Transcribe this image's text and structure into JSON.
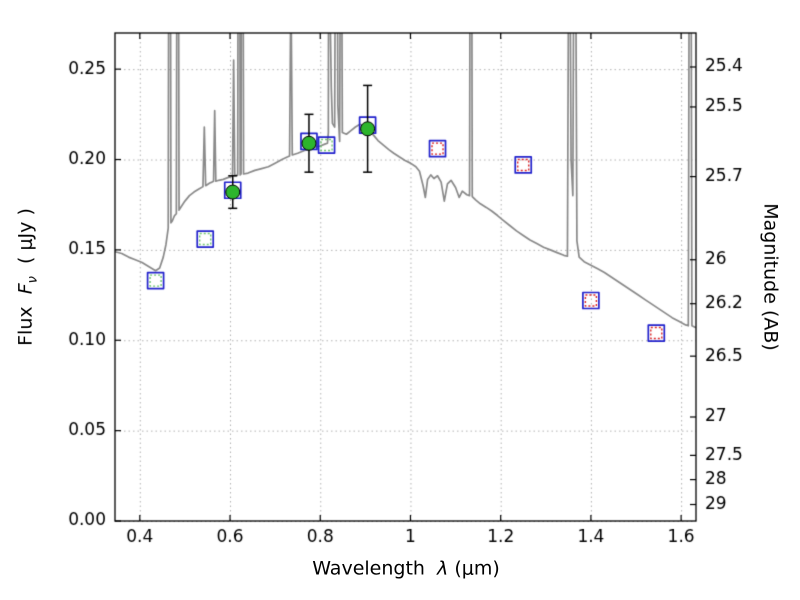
{
  "figure": {
    "background": "#ffffff"
  },
  "chart_data": {
    "type": "line",
    "description": "Spectral energy distribution: model galaxy spectrum (gray line with emission lines) with model photometry (open squares) and observed photometry (green circles with error bars)",
    "xlabel": {
      "word": "Wavelength",
      "symbol": "λ",
      "units": "(μm)"
    },
    "ylabel_left": {
      "word": "Flux",
      "symbol": "F",
      "sub": "ν",
      "units": "( μJy )"
    },
    "ylabel_right": "Magnitude (AB)",
    "xlim": [
      0.345,
      1.633
    ],
    "ylim": [
      0,
      0.27
    ],
    "x_ticks": [
      0.4,
      0.6,
      0.8,
      1,
      1.2,
      1.4,
      1.6
    ],
    "x_tick_labels": [
      "0.4",
      "0.6",
      "0.8",
      "1",
      "1.2",
      "1.4",
      "1.6"
    ],
    "y_ticks_left": [
      0,
      0.05,
      0.1,
      0.15,
      0.2,
      0.25
    ],
    "y_tick_labels_left": [
      "0.00",
      "0.05",
      "0.10",
      "0.15",
      "0.20",
      "0.25"
    ],
    "y_ticks_right_mag": [
      25.4,
      25.5,
      25.7,
      26,
      26.2,
      26.5,
      27,
      27.5,
      28,
      29
    ],
    "y_tick_labels_right": [
      "25.4",
      "25.5",
      "25.7",
      "26",
      "26.2",
      "26.5",
      "27",
      "27.5",
      "28",
      "29"
    ],
    "ab_zeropoint": 23.9,
    "grid": "dotted",
    "colors": {
      "grid": "#b3b3b3",
      "frame": "#000000",
      "spectrum": "#8a8a8a",
      "square_outer": "#2222cc",
      "square_inner_red": "#dd2222",
      "square_inner_green": "#6ec86e",
      "circle": "#2db52d",
      "errorbar": "#000000"
    },
    "series": [
      {
        "name": "model-spectrum",
        "type": "line",
        "points": [
          [
            0.345,
            0.149
          ],
          [
            0.36,
            0.148
          ],
          [
            0.375,
            0.146
          ],
          [
            0.39,
            0.1445
          ],
          [
            0.405,
            0.143
          ],
          [
            0.415,
            0.1415
          ],
          [
            0.425,
            0.14
          ],
          [
            0.435,
            0.1385
          ],
          [
            0.444,
            0.14
          ],
          [
            0.452,
            0.146
          ],
          [
            0.458,
            0.153
          ],
          [
            0.463,
            0.162
          ],
          [
            0.466,
            0.6
          ],
          [
            0.469,
            0.165
          ],
          [
            0.472,
            0.166
          ],
          [
            0.477,
            0.169
          ],
          [
            0.481,
            0.17
          ],
          [
            0.484,
            0.55
          ],
          [
            0.487,
            0.172
          ],
          [
            0.492,
            0.174
          ],
          [
            0.5,
            0.177
          ],
          [
            0.51,
            0.18
          ],
          [
            0.52,
            0.182
          ],
          [
            0.53,
            0.1835
          ],
          [
            0.54,
            0.185
          ],
          [
            0.543,
            0.218
          ],
          [
            0.546,
            0.1855
          ],
          [
            0.555,
            0.187
          ],
          [
            0.56,
            0.1875
          ],
          [
            0.5635,
            0.188
          ],
          [
            0.566,
            0.227
          ],
          [
            0.5685,
            0.188
          ],
          [
            0.575,
            0.1885
          ],
          [
            0.585,
            0.189
          ],
          [
            0.595,
            0.19
          ],
          [
            0.603,
            0.1905
          ],
          [
            0.6055,
            0.191
          ],
          [
            0.608,
            0.255
          ],
          [
            0.6105,
            0.191
          ],
          [
            0.617,
            0.1915
          ],
          [
            0.62,
            0.6
          ],
          [
            0.6225,
            0.1915
          ],
          [
            0.6245,
            0.192
          ],
          [
            0.627,
            0.6
          ],
          [
            0.63,
            0.192
          ],
          [
            0.64,
            0.1925
          ],
          [
            0.655,
            0.194
          ],
          [
            0.67,
            0.195
          ],
          [
            0.685,
            0.196
          ],
          [
            0.7,
            0.198
          ],
          [
            0.715,
            0.2
          ],
          [
            0.728,
            0.2015
          ],
          [
            0.732,
            0.202
          ],
          [
            0.735,
            0.3
          ],
          [
            0.738,
            0.2025
          ],
          [
            0.75,
            0.2035
          ],
          [
            0.765,
            0.205
          ],
          [
            0.775,
            0.2055
          ],
          [
            0.79,
            0.207
          ],
          [
            0.8,
            0.2075
          ],
          [
            0.81,
            0.2085
          ],
          [
            0.816,
            0.209
          ],
          [
            0.818,
            0.215
          ],
          [
            0.82,
            0.6
          ],
          [
            0.822,
            0.28
          ],
          [
            0.8245,
            0.24
          ],
          [
            0.827,
            0.22
          ],
          [
            0.832,
            0.218
          ],
          [
            0.836,
            0.5
          ],
          [
            0.839,
            0.23
          ],
          [
            0.843,
            0.21
          ],
          [
            0.846,
            0.42
          ],
          [
            0.849,
            0.215
          ],
          [
            0.858,
            0.214
          ],
          [
            0.868,
            0.216
          ],
          [
            0.878,
            0.218
          ],
          [
            0.888,
            0.2195
          ],
          [
            0.898,
            0.2185
          ],
          [
            0.908,
            0.216
          ],
          [
            0.918,
            0.2135
          ],
          [
            0.928,
            0.2105
          ],
          [
            0.94,
            0.208
          ],
          [
            0.952,
            0.2055
          ],
          [
            0.963,
            0.2035
          ],
          [
            0.975,
            0.2015
          ],
          [
            0.988,
            0.1995
          ],
          [
            1.0,
            0.198
          ],
          [
            1.012,
            0.196
          ],
          [
            1.02,
            0.1935
          ],
          [
            1.028,
            0.1855
          ],
          [
            1.033,
            0.179
          ],
          [
            1.038,
            0.189
          ],
          [
            1.045,
            0.1915
          ],
          [
            1.052,
            0.1895
          ],
          [
            1.06,
            0.191
          ],
          [
            1.068,
            0.1875
          ],
          [
            1.075,
            0.177
          ],
          [
            1.082,
            0.1865
          ],
          [
            1.09,
            0.1885
          ],
          [
            1.1,
            0.1845
          ],
          [
            1.108,
            0.179
          ],
          [
            1.115,
            0.1825
          ],
          [
            1.125,
            0.1805
          ],
          [
            1.131,
            0.18
          ],
          [
            1.134,
            0.55
          ],
          [
            1.137,
            0.1795
          ],
          [
            1.145,
            0.1775
          ],
          [
            1.155,
            0.1755
          ],
          [
            1.168,
            0.1735
          ],
          [
            1.18,
            0.1715
          ],
          [
            1.193,
            0.169
          ],
          [
            1.205,
            0.1665
          ],
          [
            1.22,
            0.1635
          ],
          [
            1.235,
            0.1605
          ],
          [
            1.25,
            0.158
          ],
          [
            1.265,
            0.1555
          ],
          [
            1.28,
            0.1535
          ],
          [
            1.295,
            0.1515
          ],
          [
            1.31,
            0.15
          ],
          [
            1.325,
            0.1485
          ],
          [
            1.34,
            0.147
          ],
          [
            1.348,
            0.1465
          ],
          [
            1.352,
            0.4
          ],
          [
            1.356,
            0.2
          ],
          [
            1.36,
            0.18
          ],
          [
            1.364,
            0.45
          ],
          [
            1.369,
            0.155
          ],
          [
            1.374,
            0.146
          ],
          [
            1.385,
            0.1435
          ],
          [
            1.4,
            0.1415
          ],
          [
            1.415,
            0.1395
          ],
          [
            1.43,
            0.1375
          ],
          [
            1.445,
            0.135
          ],
          [
            1.46,
            0.1325
          ],
          [
            1.475,
            0.13
          ],
          [
            1.49,
            0.1275
          ],
          [
            1.505,
            0.125
          ],
          [
            1.52,
            0.1225
          ],
          [
            1.535,
            0.12
          ],
          [
            1.55,
            0.1175
          ],
          [
            1.565,
            0.115
          ],
          [
            1.58,
            0.1125
          ],
          [
            1.595,
            0.1105
          ],
          [
            1.61,
            0.1085
          ],
          [
            1.616,
            0.108
          ],
          [
            1.62,
            0.55
          ],
          [
            1.624,
            0.108
          ],
          [
            1.633,
            0.107
          ]
        ]
      },
      {
        "name": "model-photometry-squares",
        "type": "scatter",
        "marker": "square-open",
        "points": [
          {
            "x": 0.435,
            "y": 0.133,
            "inner": "green"
          },
          {
            "x": 0.545,
            "y": 0.156,
            "inner": "green"
          },
          {
            "x": 0.606,
            "y": 0.183,
            "inner": null
          },
          {
            "x": 0.775,
            "y": 0.21,
            "inner": null
          },
          {
            "x": 0.814,
            "y": 0.208,
            "inner": "green"
          },
          {
            "x": 0.905,
            "y": 0.219,
            "inner": null
          },
          {
            "x": 1.06,
            "y": 0.206,
            "inner": "red"
          },
          {
            "x": 1.25,
            "y": 0.197,
            "inner": "red"
          },
          {
            "x": 1.4,
            "y": 0.122,
            "inner": "red"
          },
          {
            "x": 1.545,
            "y": 0.104,
            "inner": "red"
          }
        ]
      },
      {
        "name": "observed-photometry",
        "type": "scatter",
        "marker": "circle-filled",
        "points": [
          {
            "x": 0.606,
            "y": 0.182,
            "yerr": 0.009
          },
          {
            "x": 0.775,
            "y": 0.209,
            "yerr": 0.016
          },
          {
            "x": 0.905,
            "y": 0.217,
            "yerr": 0.024
          }
        ]
      }
    ]
  }
}
